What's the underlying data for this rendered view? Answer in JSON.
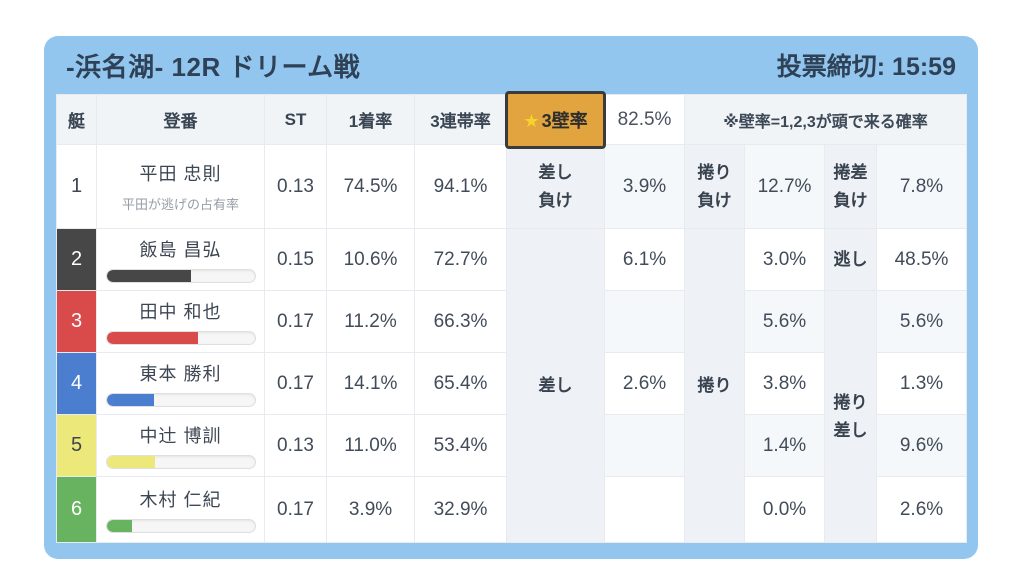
{
  "header": {
    "title": "-浜名湖- 12R ドリーム戦",
    "deadline": "投票締切: 15:59"
  },
  "columns": {
    "boat": "艇",
    "entry": "登番",
    "st": "ST",
    "win_rate": "1着率",
    "top3_rate": "3連帯率",
    "wall_star": "★",
    "wall_label": "3壁率",
    "wall_value": "82.5%",
    "note": "※壁率=1,2,3が頭で来る確率"
  },
  "merged": {
    "sashi": "差し",
    "makuri": "捲り",
    "makurizashi": "捲り\n差し"
  },
  "rows": [
    {
      "num": "1",
      "name": "平田 忠則",
      "sub": "平田が逃げの占有率",
      "st": "0.13",
      "win": "74.5%",
      "top3": "94.1%",
      "l1": "差し\n負け",
      "v1": "3.9%",
      "l2": "捲り\n負け",
      "v2": "12.7%",
      "l3": "捲差\n負け",
      "v3": "7.8%"
    },
    {
      "num": "2",
      "name": "飯島 昌弘",
      "bar": 57,
      "st": "0.15",
      "win": "10.6%",
      "top3": "72.7%",
      "v1": "6.1%",
      "v2": "3.0%",
      "l3": "逃し",
      "v3": "48.5%"
    },
    {
      "num": "3",
      "name": "田中 和也",
      "bar": 62,
      "st": "0.17",
      "win": "11.2%",
      "top3": "66.3%",
      "v1": "",
      "v2": "5.6%",
      "v3": "5.6%"
    },
    {
      "num": "4",
      "name": "東本 勝利",
      "bar": 32,
      "st": "0.17",
      "win": "14.1%",
      "top3": "65.4%",
      "v1": "2.6%",
      "v2": "3.8%",
      "v3": "1.3%"
    },
    {
      "num": "5",
      "name": "中辻 博訓",
      "bar": 33,
      "st": "0.13",
      "win": "11.0%",
      "top3": "53.4%",
      "v1": "",
      "v2": "1.4%",
      "v3": "9.6%"
    },
    {
      "num": "6",
      "name": "木村 仁紀",
      "bar": 17,
      "st": "0.17",
      "win": "3.9%",
      "top3": "32.9%",
      "v1": "",
      "v2": "0.0%",
      "v3": "2.6%"
    }
  ],
  "colors": {
    "card_blue": "#92c6ef",
    "badge_orange": "#e2a43e",
    "badge_border": "#3b3b3b",
    "star_yellow": "#f6d32a",
    "boat1": "#ffffff",
    "boat2": "#474747",
    "boat3": "#d94b4b",
    "boat4": "#4c7ed0",
    "boat5": "#ece97a",
    "boat6": "#68b35f"
  }
}
